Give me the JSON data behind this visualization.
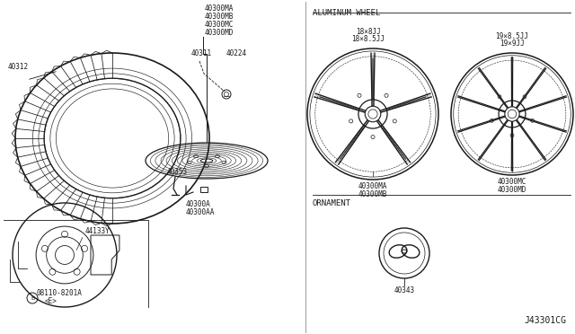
{
  "bg_color": "#ffffff",
  "line_color": "#1a1a1a",
  "diagram_code": "J43301CG",
  "fs": 5.5,
  "fsh": 6.5,
  "labels": {
    "aluminum_wheel": "ALUMINUM WHEEL",
    "ornament": "ORNAMENT",
    "part_40312": "40312",
    "part_40300MA_top": "40300MA",
    "part_40300MB_top": "40300MB",
    "part_40300MC_top": "40300MC",
    "part_40300MD_top": "40300MD",
    "part_40311": "40311",
    "part_40224": "40224",
    "part_44133Y": "44133Y",
    "part_08110": "08110-8201A",
    "part_08110b": "<E>",
    "part_40300A": "40300A",
    "part_40300AA": "40300AA",
    "part_40353": "40353",
    "part_40343": "40343",
    "wheel1_size1": "18×8JJ",
    "wheel1_size2": "18×8.5JJ",
    "wheel2_size1": "19×8.5JJ",
    "wheel2_size2": "19×9JJ",
    "wheel1_part1": "40300MA",
    "wheel1_part2": "40300MB",
    "wheel2_part1": "40300MC",
    "wheel2_part2": "40300MD"
  }
}
